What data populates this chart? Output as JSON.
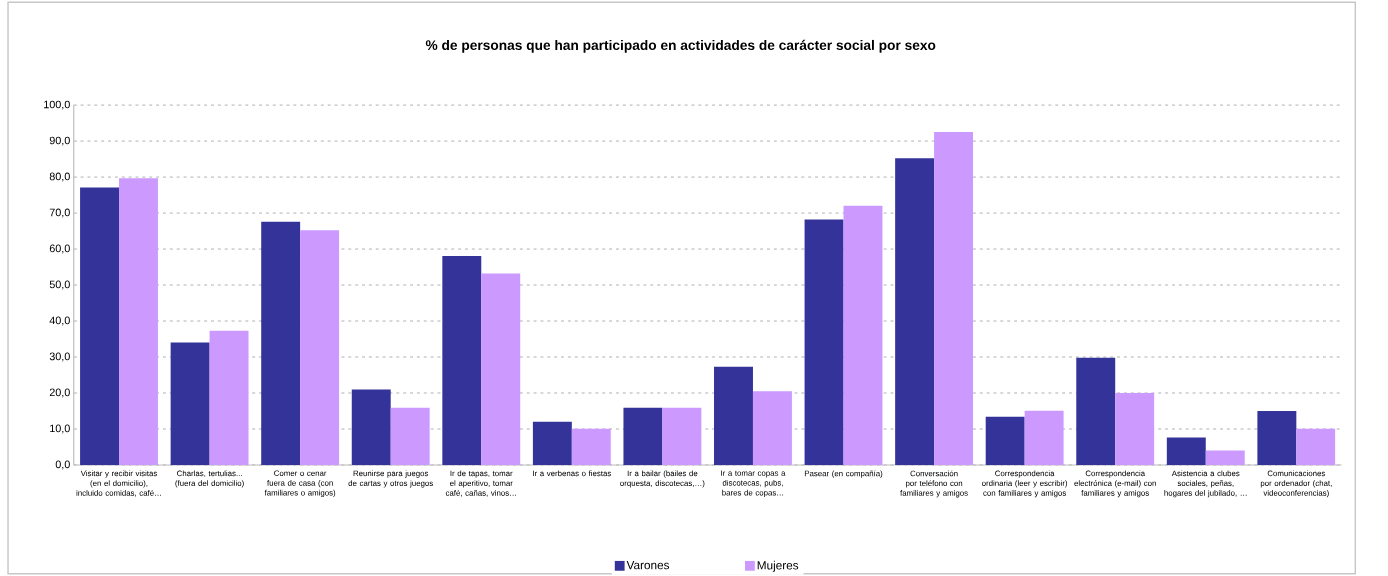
{
  "chart_data": {
    "type": "bar",
    "title": "% de personas que han participado en actividades de carácter social por sexo",
    "categories": [
      "Visitar y recibir visitas (en el domicilio), incluido comidas, café…",
      "Charlas, tertulias... (fuera del domicilio)",
      "Comer o cenar fuera de casa (con familiares o amigos)",
      "Reunirse para juegos de cartas y otros juegos",
      "Ir de tapas, tomar el aperitivo, tomar café, cañas, vinos…",
      "Ir a verbenas o fiestas",
      "Ir a bailar (bailes de orquesta, discotecas,…)",
      "Ir a tomar copas a discotecas, pubs, bares de copas…",
      "Pasear (en compañía)",
      "Conversación por teléfono con familiares y amigos",
      "Correspondencia ordinaria (leer y escribir) con familiares y amigos",
      "Correspondencia electrónica (e-mail) con familiares y amigos",
      "Asistencia a clubes sociales, peñas, hogares del jubilado, …",
      "Comunicaciones por ordenador (chat, videoconferencias)"
    ],
    "series": [
      {
        "name": "Varones",
        "color": "#333399",
        "values": [
          77.1,
          34.0,
          67.6,
          21.0,
          58.1,
          12.0,
          15.9,
          27.3,
          68.2,
          85.2,
          13.4,
          29.8,
          7.6,
          15.0
        ]
      },
      {
        "name": "Mujeres",
        "color": "#cc99ff",
        "values": [
          79.7,
          37.3,
          65.2,
          15.9,
          53.2,
          10.1,
          15.9,
          20.5,
          72.0,
          92.5,
          15.1,
          20.0,
          4.0,
          10.1
        ]
      }
    ],
    "ylim": [
      0,
      100
    ],
    "yticks": [
      {
        "value": 0,
        "label": "0,0"
      },
      {
        "value": 10,
        "label": "10,0"
      },
      {
        "value": 20,
        "label": "20,0"
      },
      {
        "value": 30,
        "label": "30,0"
      },
      {
        "value": 40,
        "label": "40,0"
      },
      {
        "value": 50,
        "label": "50,0"
      },
      {
        "value": 60,
        "label": "60,0"
      },
      {
        "value": 70,
        "label": "70,0"
      },
      {
        "value": 80,
        "label": "80,0"
      },
      {
        "value": 90,
        "label": "90,0"
      },
      {
        "value": 100,
        "label": "100,0"
      }
    ],
    "grid": "y",
    "legend": "bottom"
  }
}
